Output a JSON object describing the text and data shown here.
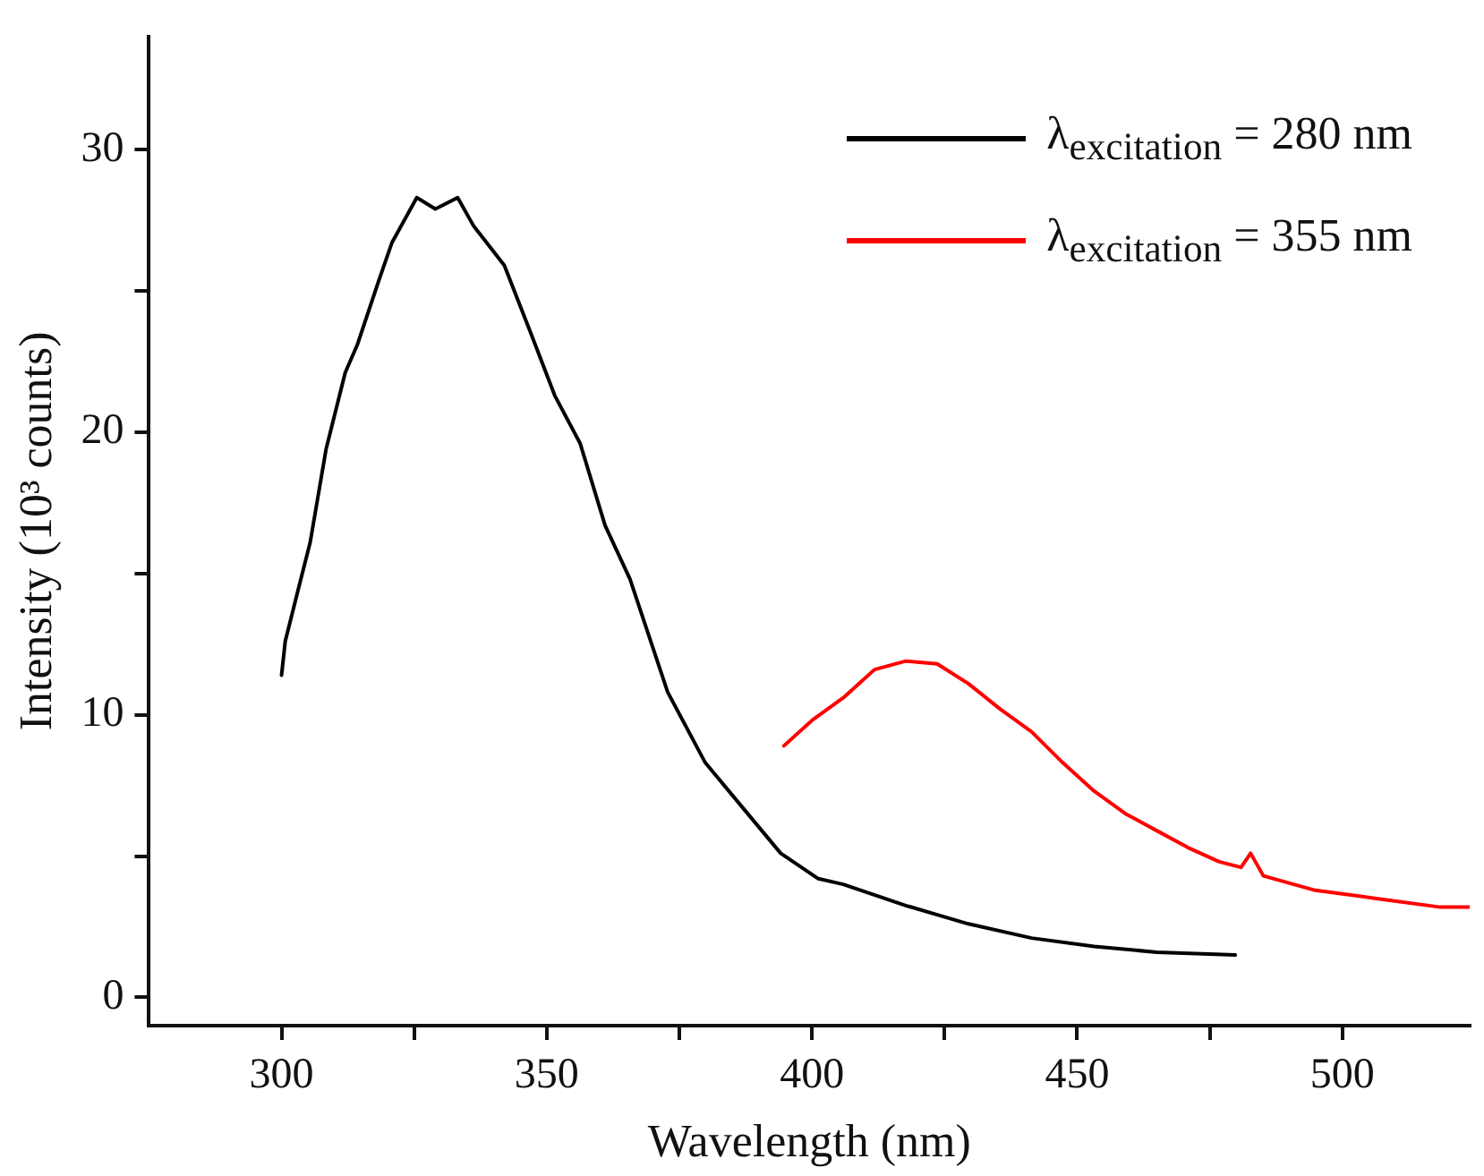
{
  "chart_data": {
    "type": "line",
    "xlabel": "Wavelength (nm)",
    "ylabel": "Intensity (10³ counts)",
    "xlim": [
      275,
      524
    ],
    "xticks": [
      300,
      {
        "value": 325,
        "label": null
      },
      350,
      {
        "value": 375,
        "label": null
      },
      400,
      {
        "value": 425,
        "label": null
      },
      450,
      {
        "value": 475,
        "label": null
      },
      500
    ],
    "ylim": [
      -1,
      34
    ],
    "yticks": [
      0,
      {
        "value": 5,
        "label": null
      },
      10,
      {
        "value": 15,
        "label": null
      },
      20,
      {
        "value": 25,
        "label": null
      },
      30
    ],
    "grid": false,
    "legend": "top right",
    "marker": "none",
    "line_style": "solid",
    "series": [
      {
        "name": "λ$_{excitation}$ = 280 nm",
        "color": "#000000",
        "x": [
          300,
          300.7,
          303.1,
          305.4,
          308.4,
          312,
          314.3,
          318.4,
          320.8,
          325.5,
          329,
          333.2,
          336.2,
          342,
          346.8,
          351.5,
          356.3,
          361,
          365.7,
          372.8,
          379.9,
          387,
          394.1,
          401.2,
          405.9,
          417.7,
          429.5,
          441.4,
          453.2,
          465,
          479.8
        ],
        "values": [
          11.4,
          12.6,
          14.4,
          16.1,
          19.4,
          22.1,
          23.1,
          25.4,
          26.7,
          28.3,
          27.9,
          28.3,
          27.3,
          25.9,
          23.6,
          21.3,
          19.6,
          16.7,
          14.8,
          10.8,
          8.3,
          6.7,
          5.1,
          4.2,
          4.0,
          3.25,
          2.6,
          2.1,
          1.8,
          1.6,
          1.5
        ]
      },
      {
        "name": "λ$_{excitation}$ = 355 nm",
        "color": "#ff0000",
        "x": [
          394.7,
          400,
          405.9,
          411.8,
          417.7,
          423.6,
          429.5,
          435.5,
          441.4,
          447.3,
          453.2,
          459.1,
          465,
          470.9,
          476.8,
          480.9,
          482.7,
          485.1,
          494.6,
          506.4,
          518.2,
          524
        ],
        "values": [
          8.9,
          9.8,
          10.6,
          11.6,
          11.9,
          11.8,
          11.1,
          10.2,
          9.4,
          8.3,
          7.3,
          6.5,
          5.9,
          5.3,
          4.8,
          4.6,
          5.1,
          4.3,
          3.8,
          3.5,
          3.2,
          3.2
        ]
      }
    ]
  }
}
